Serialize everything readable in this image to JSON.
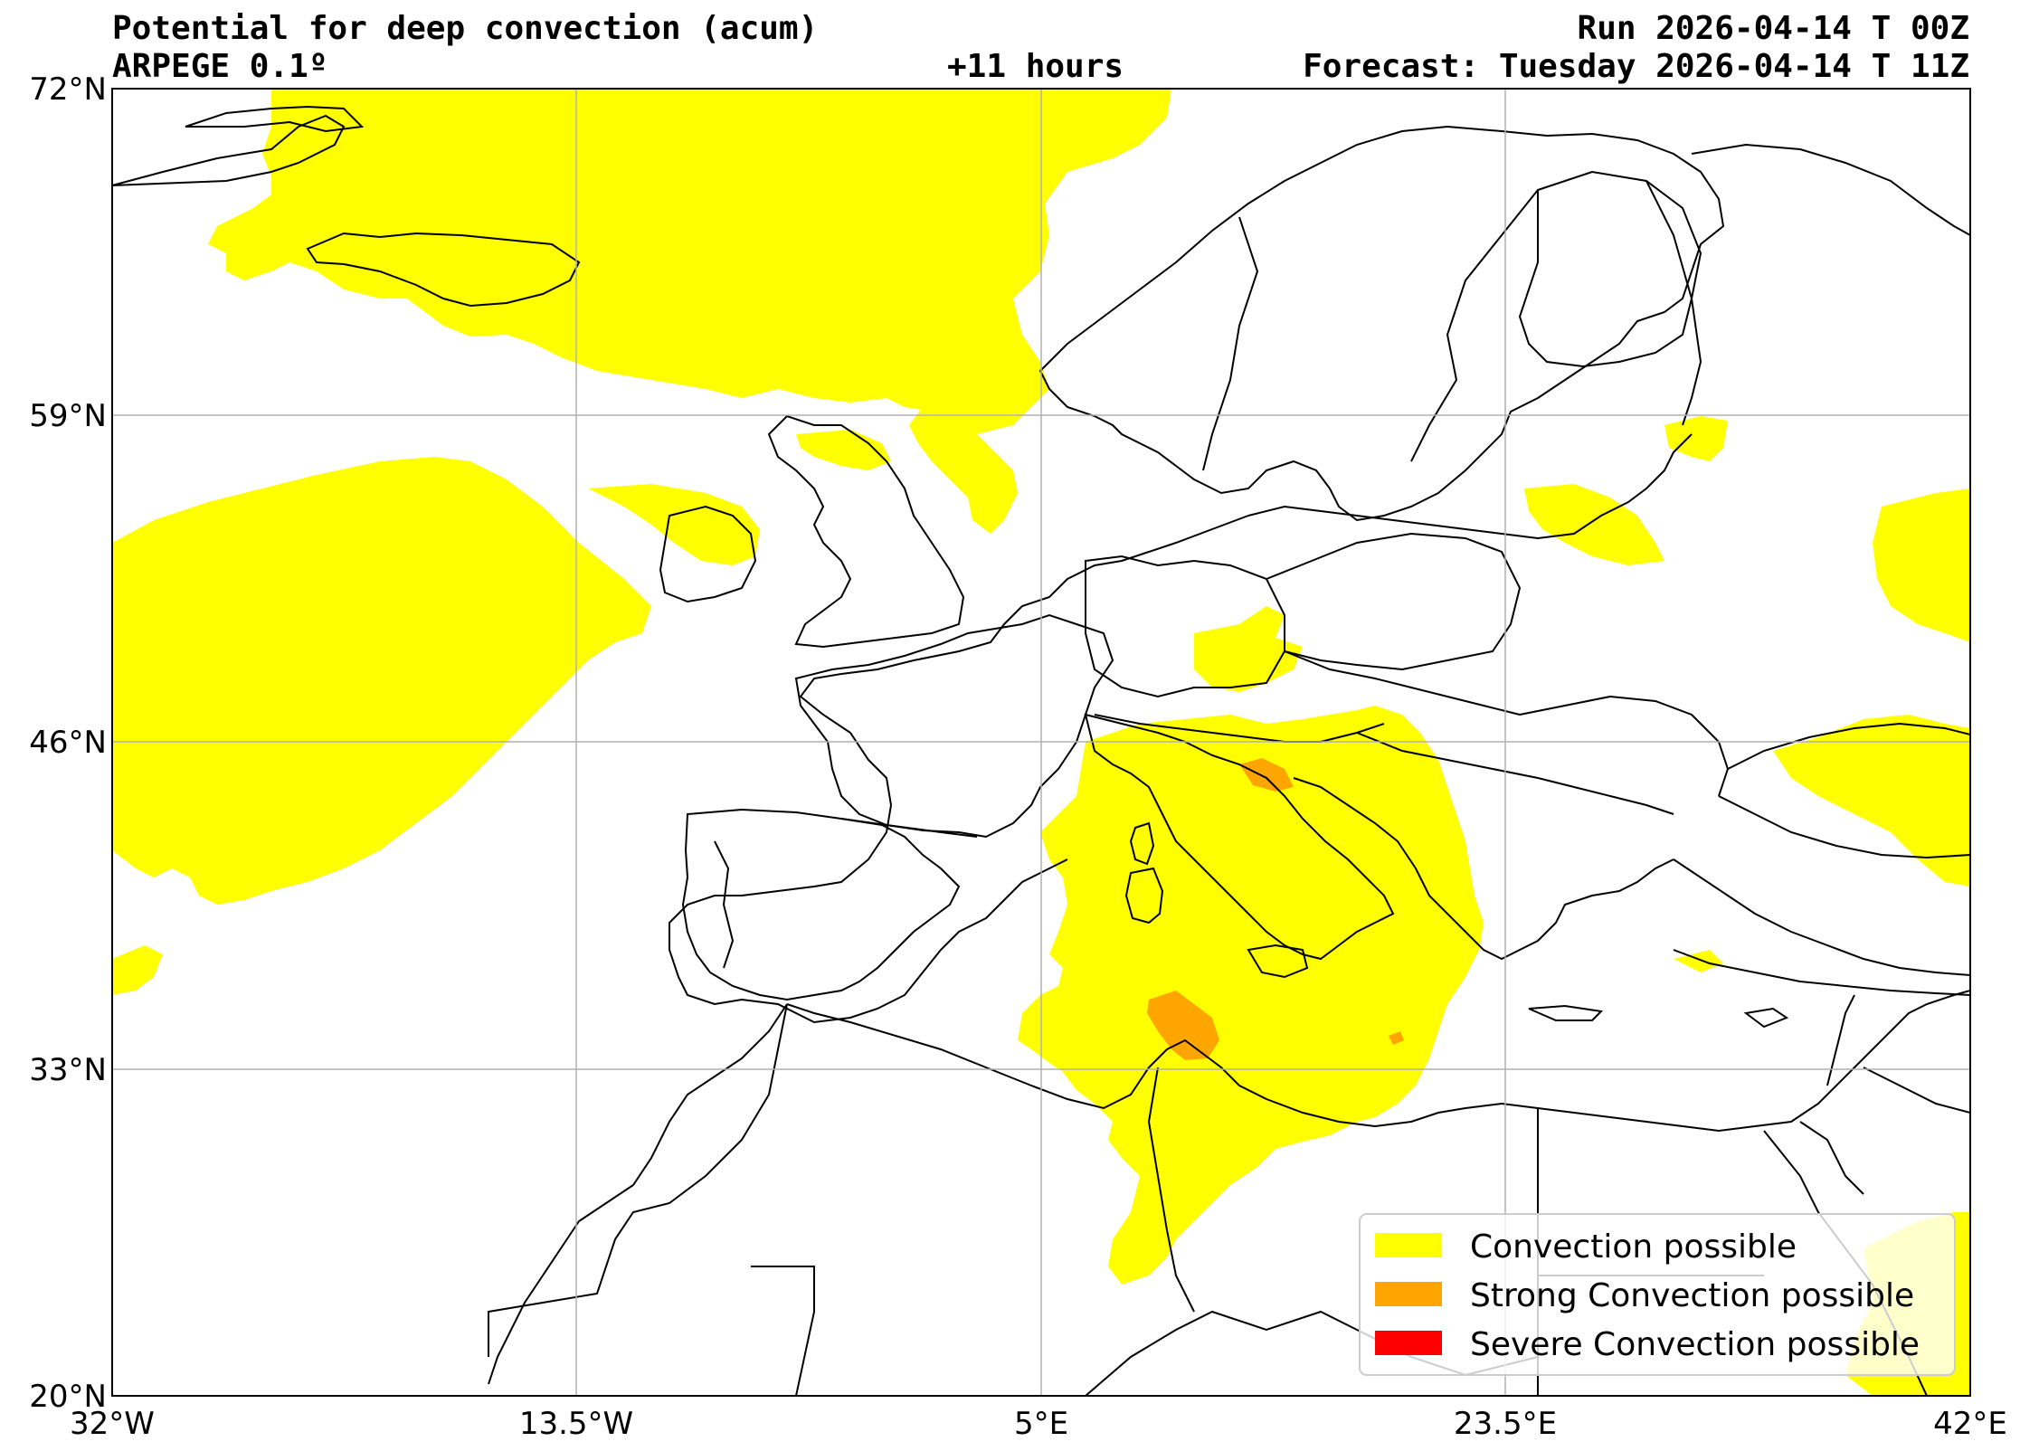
{
  "header": {
    "title": "Potential for deep convection (acum)",
    "model": "ARPEGE 0.1º",
    "lead_time": "+11 hours",
    "run": "Run 2026-04-14 T 00Z",
    "forecast": "Forecast: Tuesday 2026-04-14 T 11Z"
  },
  "axes": {
    "lat_ticks": [
      "72°N",
      "59°N",
      "46°N",
      "33°N",
      "20°N"
    ],
    "lon_ticks": [
      "32°W",
      "13.5°W",
      "5°E",
      "23.5°E",
      "42°E"
    ],
    "lat_range": [
      20,
      72
    ],
    "lon_range": [
      -32,
      42
    ],
    "grid": true
  },
  "legend": {
    "placement": "bottom-right",
    "items": [
      {
        "label": "Convection possible",
        "color": "#ffff00"
      },
      {
        "label": "Strong Convection possible",
        "color": "#ffa500"
      },
      {
        "label": "Severe Convection possible",
        "color": "#ff0000"
      }
    ]
  },
  "colors": {
    "convection": "#ffff00",
    "strong": "#ffa500",
    "severe": "#ff0000",
    "coast": "#000000",
    "grid": "#b0b0b0"
  }
}
